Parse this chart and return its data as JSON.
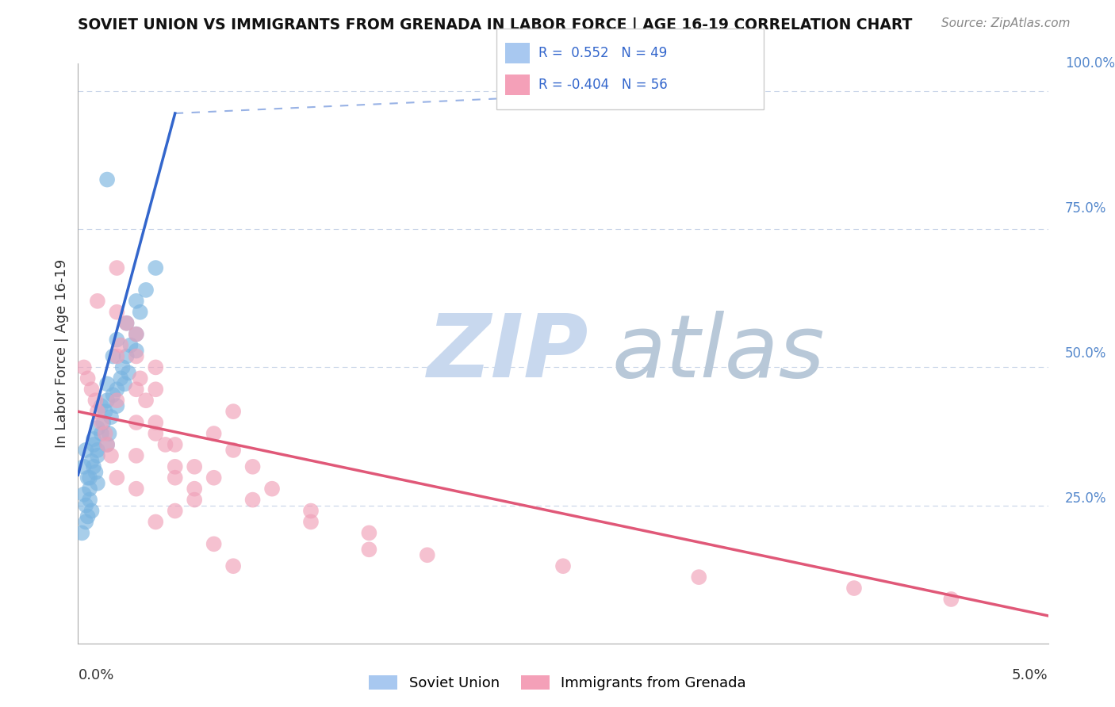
{
  "title": "SOVIET UNION VS IMMIGRANTS FROM GRENADA IN LABOR FORCE | AGE 16-19 CORRELATION CHART",
  "source": "Source: ZipAtlas.com",
  "ylabel": "In Labor Force | Age 16-19",
  "r_box": {
    "r1": "0.552",
    "n1": "49",
    "r2": "-0.404",
    "n2": "56"
  },
  "blue_scatter_color": "#7ab4e0",
  "pink_scatter_color": "#f0a0b8",
  "blue_line_color": "#3366cc",
  "pink_line_color": "#e05878",
  "background_color": "#ffffff",
  "grid_color": "#c8d4e8",
  "watermark_zip_color": "#c8d8ee",
  "watermark_atlas_color": "#b8c8d8",
  "right_label_color": "#5588cc",
  "xlim": [
    0.0,
    0.05
  ],
  "ylim": [
    0.0,
    1.05
  ],
  "blue_line_x0": 0.0,
  "blue_line_y0": 0.305,
  "blue_line_x1": 0.005,
  "blue_line_y1": 0.96,
  "blue_line_dashed_x0": 0.005,
  "blue_line_dashed_y0": 0.96,
  "blue_line_dashed_x1": 0.03,
  "blue_line_dashed_y1": 1.0,
  "pink_line_x0": 0.0,
  "pink_line_y0": 0.42,
  "pink_line_x1": 0.05,
  "pink_line_y1": 0.05,
  "blue_pts_x": [
    0.0003,
    0.0004,
    0.0005,
    0.0006,
    0.0007,
    0.0008,
    0.0009,
    0.001,
    0.001,
    0.0012,
    0.0013,
    0.0014,
    0.0015,
    0.0015,
    0.0016,
    0.0017,
    0.0018,
    0.002,
    0.002,
    0.0022,
    0.0023,
    0.0024,
    0.0025,
    0.0026,
    0.0027,
    0.003,
    0.003,
    0.0032,
    0.0035,
    0.004,
    0.0003,
    0.0004,
    0.0005,
    0.0006,
    0.0007,
    0.0008,
    0.001,
    0.0012,
    0.0015,
    0.0018,
    0.002,
    0.0025,
    0.003,
    0.0002,
    0.0004,
    0.0006,
    0.0008,
    0.001,
    0.0015
  ],
  "blue_pts_y": [
    0.32,
    0.35,
    0.3,
    0.28,
    0.33,
    0.36,
    0.31,
    0.34,
    0.29,
    0.38,
    0.4,
    0.42,
    0.36,
    0.44,
    0.38,
    0.41,
    0.45,
    0.46,
    0.43,
    0.48,
    0.5,
    0.47,
    0.52,
    0.49,
    0.54,
    0.56,
    0.53,
    0.6,
    0.64,
    0.68,
    0.27,
    0.25,
    0.23,
    0.26,
    0.24,
    0.37,
    0.39,
    0.43,
    0.47,
    0.52,
    0.55,
    0.58,
    0.62,
    0.2,
    0.22,
    0.3,
    0.32,
    0.35,
    0.84
  ],
  "pink_pts_x": [
    0.0003,
    0.0005,
    0.0007,
    0.0009,
    0.001,
    0.0012,
    0.0014,
    0.0015,
    0.0017,
    0.002,
    0.002,
    0.0022,
    0.0025,
    0.003,
    0.003,
    0.0032,
    0.0035,
    0.004,
    0.004,
    0.0045,
    0.005,
    0.006,
    0.007,
    0.008,
    0.009,
    0.01,
    0.012,
    0.015,
    0.002,
    0.003,
    0.004,
    0.005,
    0.007,
    0.008,
    0.009,
    0.012,
    0.002,
    0.003,
    0.004,
    0.005,
    0.006,
    0.003,
    0.004,
    0.005,
    0.006,
    0.007,
    0.008,
    0.001,
    0.002,
    0.003,
    0.015,
    0.018,
    0.025,
    0.032,
    0.04,
    0.045
  ],
  "pink_pts_y": [
    0.5,
    0.48,
    0.46,
    0.44,
    0.42,
    0.4,
    0.38,
    0.36,
    0.34,
    0.68,
    0.6,
    0.54,
    0.58,
    0.56,
    0.52,
    0.48,
    0.44,
    0.4,
    0.5,
    0.36,
    0.32,
    0.28,
    0.38,
    0.35,
    0.32,
    0.28,
    0.24,
    0.2,
    0.3,
    0.34,
    0.38,
    0.36,
    0.3,
    0.42,
    0.26,
    0.22,
    0.44,
    0.4,
    0.46,
    0.24,
    0.32,
    0.28,
    0.22,
    0.3,
    0.26,
    0.18,
    0.14,
    0.62,
    0.52,
    0.46,
    0.17,
    0.16,
    0.14,
    0.12,
    0.1,
    0.08
  ]
}
